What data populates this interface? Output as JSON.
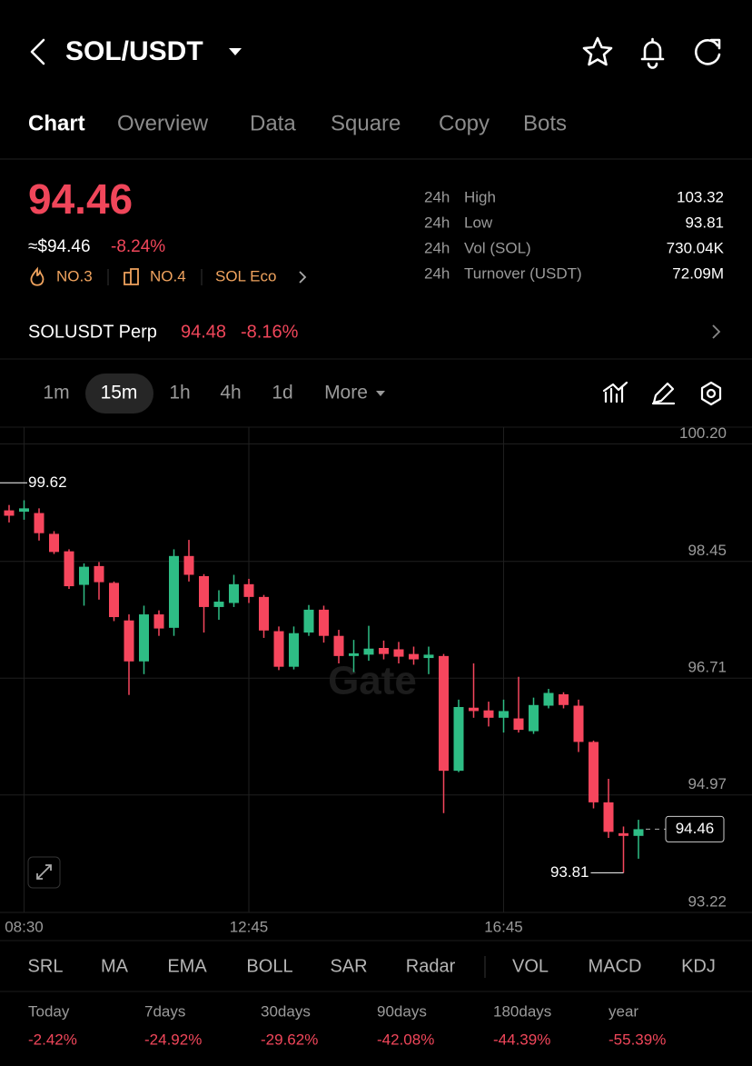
{
  "header": {
    "pair": "SOL/USDT"
  },
  "tabs": [
    "Chart",
    "Overview",
    "Data",
    "Square",
    "Copy",
    "Bots"
  ],
  "price": {
    "last": "94.46",
    "fiat": "≈$94.46",
    "change": "-8.24%",
    "badges": [
      "NO.3",
      "NO.4",
      "SOL Eco"
    ]
  },
  "stats": [
    {
      "period": "24h",
      "name": "High",
      "value": "103.32"
    },
    {
      "period": "24h",
      "name": "Low",
      "value": "93.81"
    },
    {
      "period": "24h",
      "name": "Vol (SOL)",
      "value": "730.04K"
    },
    {
      "period": "24h",
      "name": "Turnover (USDT)",
      "value": "72.09M"
    }
  ],
  "perp": {
    "name": "SOLUSDT Perp",
    "price": "94.48",
    "change": "-8.16%"
  },
  "intervals": [
    "1m",
    "15m",
    "1h",
    "4h",
    "1d",
    "More"
  ],
  "chart_data": {
    "type": "candlestick",
    "watermark": "Gate",
    "categories": [
      null,
      "08:30",
      null,
      null,
      null,
      null,
      null,
      null,
      null,
      null,
      null,
      null,
      null,
      null,
      null,
      null,
      "12:45",
      null,
      null,
      null,
      null,
      null,
      null,
      null,
      null,
      null,
      null,
      null,
      null,
      null,
      null,
      null,
      null,
      "16:45",
      null,
      null,
      null,
      null,
      null,
      null,
      null,
      null,
      null
    ],
    "open": [
      99.21,
      99.19,
      99.17,
      98.86,
      98.6,
      98.1,
      98.38,
      98.13,
      97.57,
      96.96,
      97.66,
      97.46,
      98.53,
      98.23,
      97.77,
      97.83,
      98.11,
      97.92,
      97.41,
      96.88,
      97.39,
      97.73,
      97.34,
      97.04,
      97.06,
      97.16,
      97.14,
      97.07,
      97.01,
      97.04,
      95.33,
      96.27,
      96.23,
      96.12,
      96.11,
      95.92,
      96.3,
      96.47,
      96.3,
      95.76,
      94.86,
      94.4,
      94.36
    ],
    "high": [
      99.29,
      99.36,
      99.24,
      98.9,
      98.63,
      98.42,
      98.44,
      98.15,
      97.66,
      97.79,
      97.72,
      98.63,
      98.77,
      98.26,
      98.02,
      98.25,
      98.19,
      97.95,
      97.48,
      97.48,
      97.8,
      97.79,
      97.43,
      97.28,
      97.49,
      97.27,
      97.25,
      97.18,
      97.18,
      97.07,
      96.39,
      96.93,
      96.36,
      96.39,
      96.73,
      96.42,
      96.55,
      96.5,
      96.39,
      95.78,
      95.21,
      94.5,
      94.6
    ],
    "low": [
      99.03,
      99.07,
      98.76,
      98.56,
      98.04,
      97.79,
      97.88,
      97.56,
      96.46,
      96.77,
      97.34,
      97.34,
      98.15,
      97.39,
      97.58,
      97.77,
      97.83,
      97.31,
      96.83,
      96.84,
      97.34,
      97.24,
      96.93,
      96.8,
      96.97,
      96.99,
      96.93,
      96.91,
      96.77,
      94.7,
      95.31,
      96.12,
      95.99,
      95.9,
      95.9,
      95.88,
      96.26,
      96.26,
      95.61,
      94.77,
      94.33,
      93.81,
      94.02
    ],
    "close": [
      99.13,
      99.24,
      98.87,
      98.59,
      98.08,
      98.37,
      98.14,
      97.62,
      96.96,
      97.66,
      97.45,
      98.53,
      98.25,
      97.77,
      97.85,
      98.11,
      97.92,
      97.42,
      96.88,
      97.38,
      97.73,
      97.34,
      97.04,
      97.08,
      97.15,
      97.07,
      97.03,
      96.99,
      97.06,
      95.33,
      96.28,
      96.22,
      96.12,
      96.22,
      95.94,
      96.31,
      96.49,
      96.31,
      95.76,
      94.86,
      94.42,
      94.36,
      94.46
    ],
    "up_color": "#2ebd85",
    "down_color": "#f6465d",
    "ylim": [
      93.22,
      100.45
    ],
    "yticks": [
      {
        "value": 100.2,
        "label": "100.20"
      },
      98.45,
      96.71,
      94.97,
      93.22
    ],
    "grid": true,
    "high_marker": 99.62,
    "low_marker": 93.81,
    "last_price": 94.46
  },
  "indicators": [
    "SRL",
    "MA",
    "EMA",
    "BOLL",
    "SAR",
    "Radar",
    "VOL",
    "MACD",
    "KDJ"
  ],
  "performance": [
    {
      "period": "Today",
      "change": "-2.42%"
    },
    {
      "period": "7days",
      "change": "-24.92%"
    },
    {
      "period": "30days",
      "change": "-29.62%"
    },
    {
      "period": "90days",
      "change": "-42.08%"
    },
    {
      "period": "180days",
      "change": "-44.39%"
    },
    {
      "period": "year",
      "change": "-55.39%"
    }
  ]
}
